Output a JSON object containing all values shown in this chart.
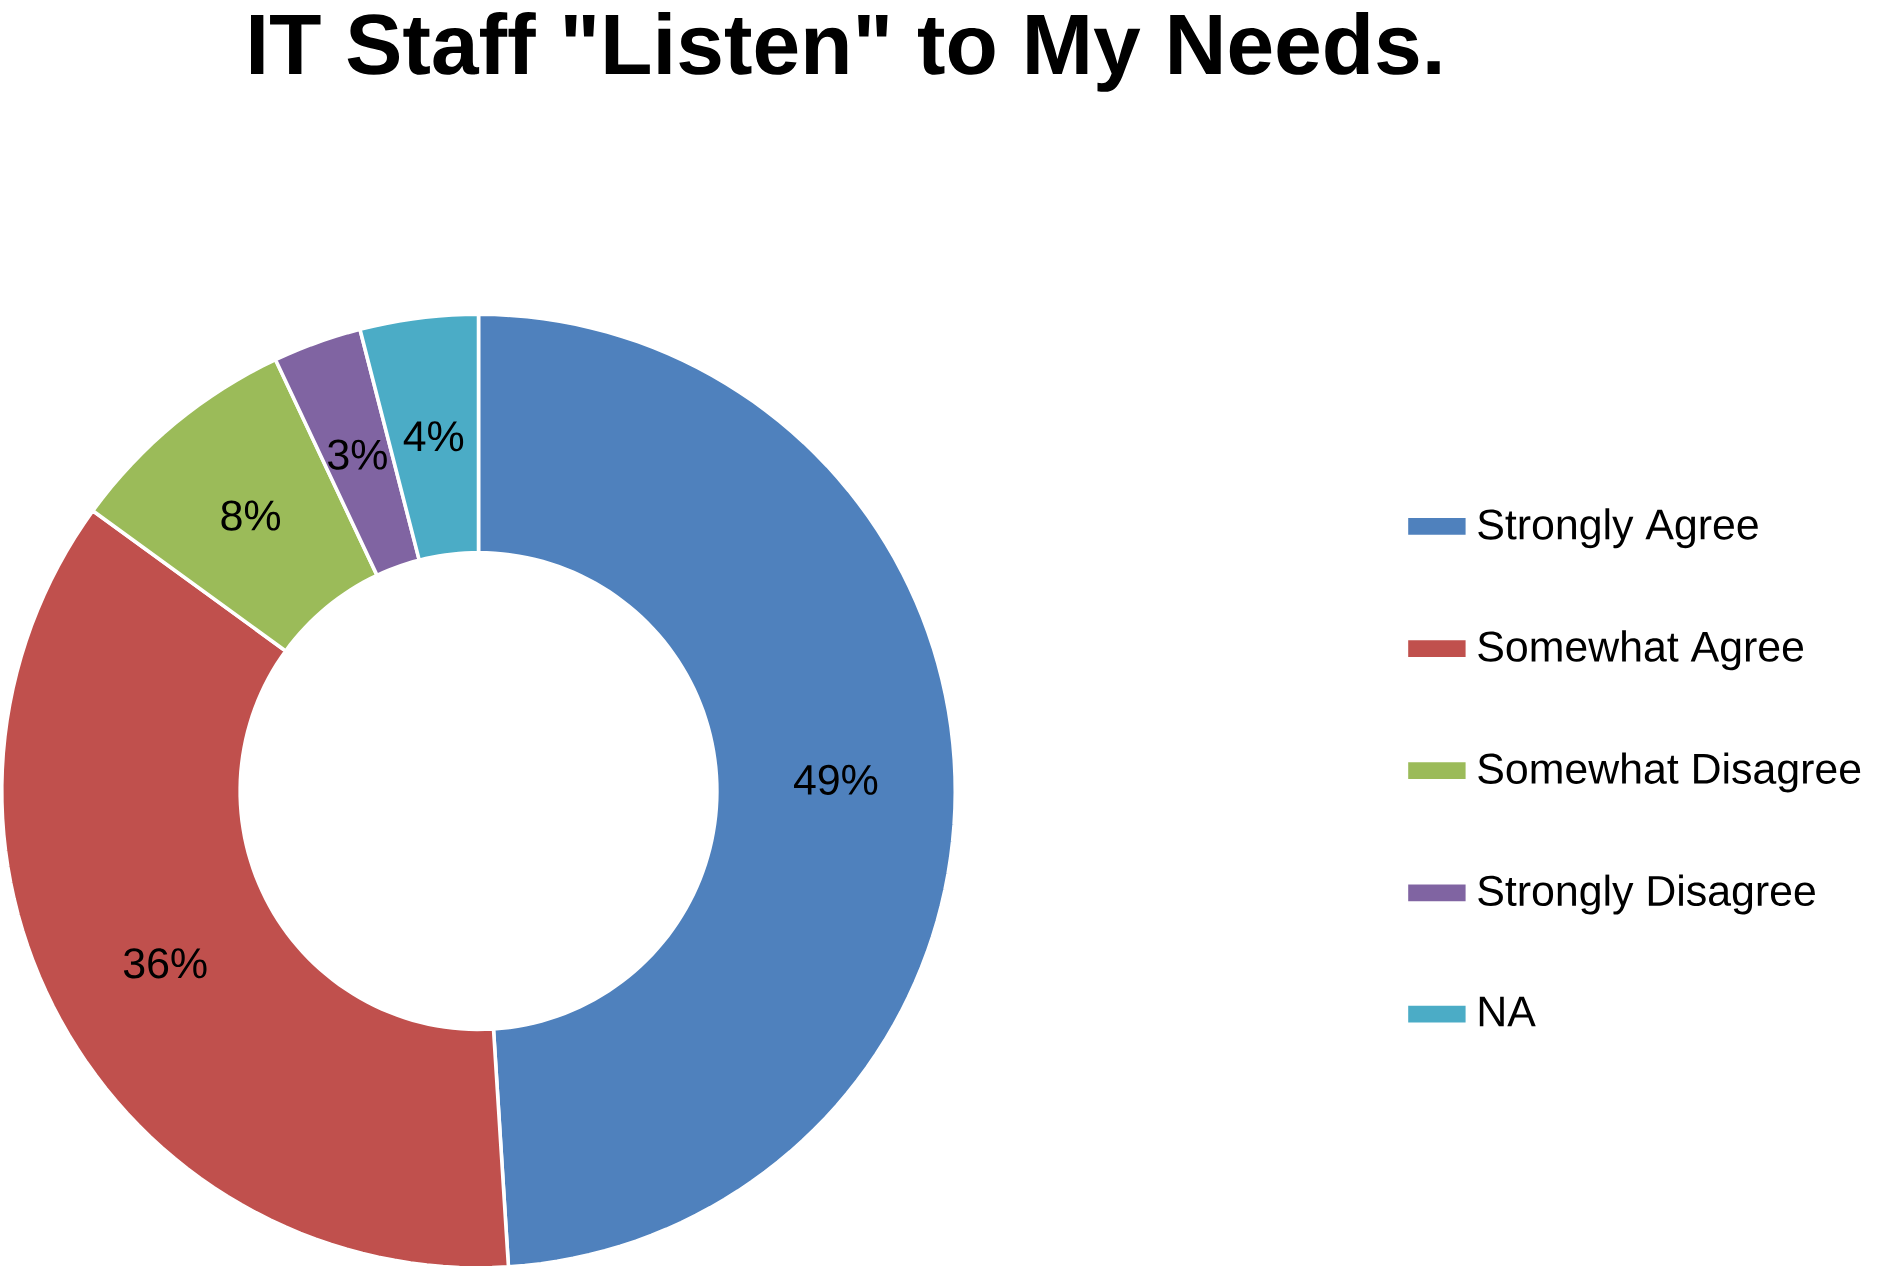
{
  "chart_data": {
    "type": "donut",
    "title": "IT Staff \"Listen\" to My Needs.",
    "categories": [
      "Strongly Agree",
      "Somewhat Agree",
      "Somewhat Disagree",
      "Strongly Disagree",
      "NA"
    ],
    "values": [
      49,
      36,
      8,
      3,
      4
    ],
    "value_labels": [
      "49%",
      "36%",
      "8%",
      "3%",
      "4%"
    ],
    "colors": [
      "#4f81bd",
      "#c0504d",
      "#9bbb59",
      "#8064a2",
      "#4bacc6"
    ],
    "legend": "right"
  }
}
